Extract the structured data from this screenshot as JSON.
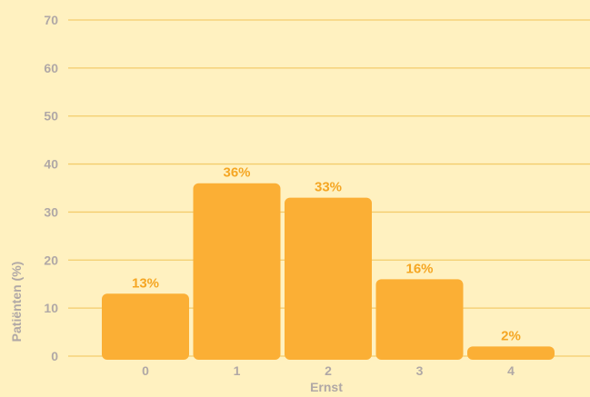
{
  "chart_data": {
    "type": "bar",
    "categories": [
      "0",
      "1",
      "2",
      "3",
      "4"
    ],
    "values": [
      13,
      36,
      33,
      16,
      2
    ],
    "data_labels": [
      "13%",
      "36%",
      "33%",
      "16%",
      "2%"
    ],
    "title": "",
    "xlabel": "Ernst",
    "ylabel": "Patiënten (%)",
    "ylim": [
      0,
      70
    ],
    "yticks": [
      0,
      10,
      20,
      30,
      40,
      50,
      60,
      70
    ],
    "grid": true,
    "legend": "none"
  },
  "colors": {
    "background": "#FFF1C0",
    "bar": "#FBAF35",
    "data_label": "#F5A623",
    "axis_text": "#B0A8A6",
    "gridline": "#F3CC6C"
  }
}
